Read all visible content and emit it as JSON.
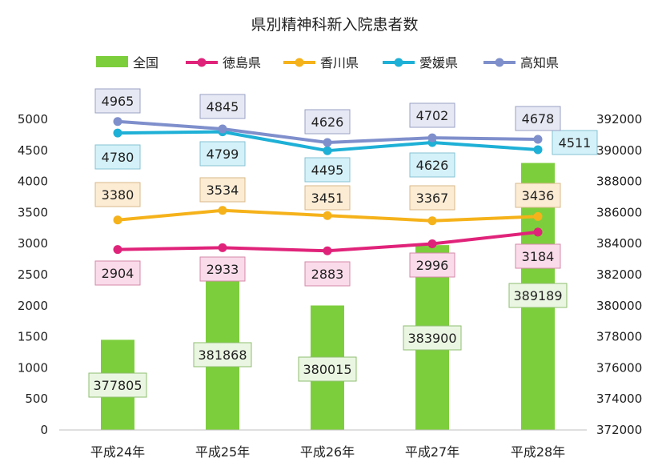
{
  "chart_data": {
    "type": "bar+line",
    "title": "県別精神科新入院患者数",
    "categories": [
      "平成24年",
      "平成25年",
      "平成26年",
      "平成27年",
      "平成28年"
    ],
    "y_left": {
      "range": [
        0,
        5000
      ],
      "ticks": [
        "0",
        "500",
        "1000",
        "1500",
        "2000",
        "2500",
        "3000",
        "3500",
        "4000",
        "4500",
        "5000"
      ]
    },
    "y_right": {
      "range": [
        372000,
        392000
      ],
      "ticks": [
        "372000",
        "374000",
        "376000",
        "378000",
        "380000",
        "382000",
        "384000",
        "386000",
        "388000",
        "390000",
        "392000"
      ]
    },
    "legend_position": "top",
    "series": [
      {
        "name": "全国",
        "type": "bar",
        "axis": "right",
        "color": "#7dce3c",
        "label_bg": "#eaf6e2",
        "label_border": "#8fbf70",
        "values": [
          377805,
          381868,
          380015,
          383900,
          389189
        ],
        "labels": [
          "377805",
          "381868",
          "380015",
          "383900",
          "389189"
        ]
      },
      {
        "name": "徳島県",
        "type": "line",
        "axis": "left",
        "color": "#e0237a",
        "label_bg": "#fadbe9",
        "label_border": "#d48aa9",
        "values": [
          2904,
          2933,
          2883,
          2996,
          3184
        ],
        "labels": [
          "2904",
          "2933",
          "2883",
          "2996",
          "3184"
        ]
      },
      {
        "name": "香川県",
        "type": "line",
        "axis": "left",
        "color": "#f5b21a",
        "label_bg": "#fcecd4",
        "label_border": "#d8b98a",
        "values": [
          3380,
          3534,
          3451,
          3367,
          3436
        ],
        "labels": [
          "3380",
          "3534",
          "3451",
          "3367",
          "3436"
        ]
      },
      {
        "name": "愛媛県",
        "type": "line",
        "axis": "left",
        "color": "#1eb0d6",
        "label_bg": "#d4f1f9",
        "label_border": "#86c2d3",
        "values": [
          4780,
          4799,
          4495,
          4626,
          4511
        ],
        "labels": [
          "4780",
          "4799",
          "4495",
          "4626",
          "4511"
        ]
      },
      {
        "name": "高知県",
        "type": "line",
        "axis": "left",
        "color": "#7f8fcc",
        "label_bg": "#e6e8f4",
        "label_border": "#9aa2c4",
        "values": [
          4965,
          4845,
          4626,
          4702,
          4678
        ],
        "labels": [
          "4965",
          "4845",
          "4626",
          "4702",
          "4678"
        ]
      }
    ]
  }
}
